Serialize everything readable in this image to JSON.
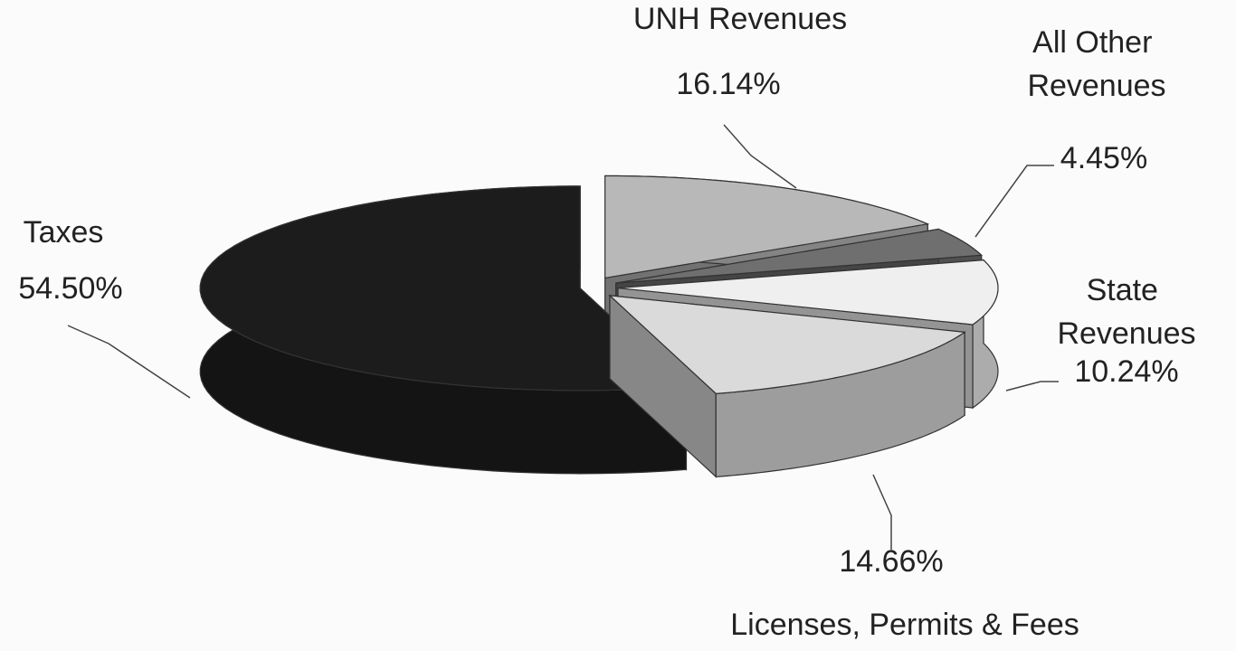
{
  "chart_data": {
    "type": "pie",
    "categories": [
      "UNH Revenues",
      "All Other Revenues",
      "State Revenues",
      "Licenses, Permits & Fees",
      "Taxes"
    ],
    "values": [
      16.14,
      4.45,
      10.24,
      14.66,
      54.5
    ],
    "value_labels": [
      "16.14%",
      "4.45%",
      "10.24%",
      "14.66%",
      "54.50%"
    ],
    "colors": [
      "#b8b8b8",
      "#6f6f6f",
      "#efefef",
      "#dadada",
      "#1c1c1c"
    ]
  }
}
